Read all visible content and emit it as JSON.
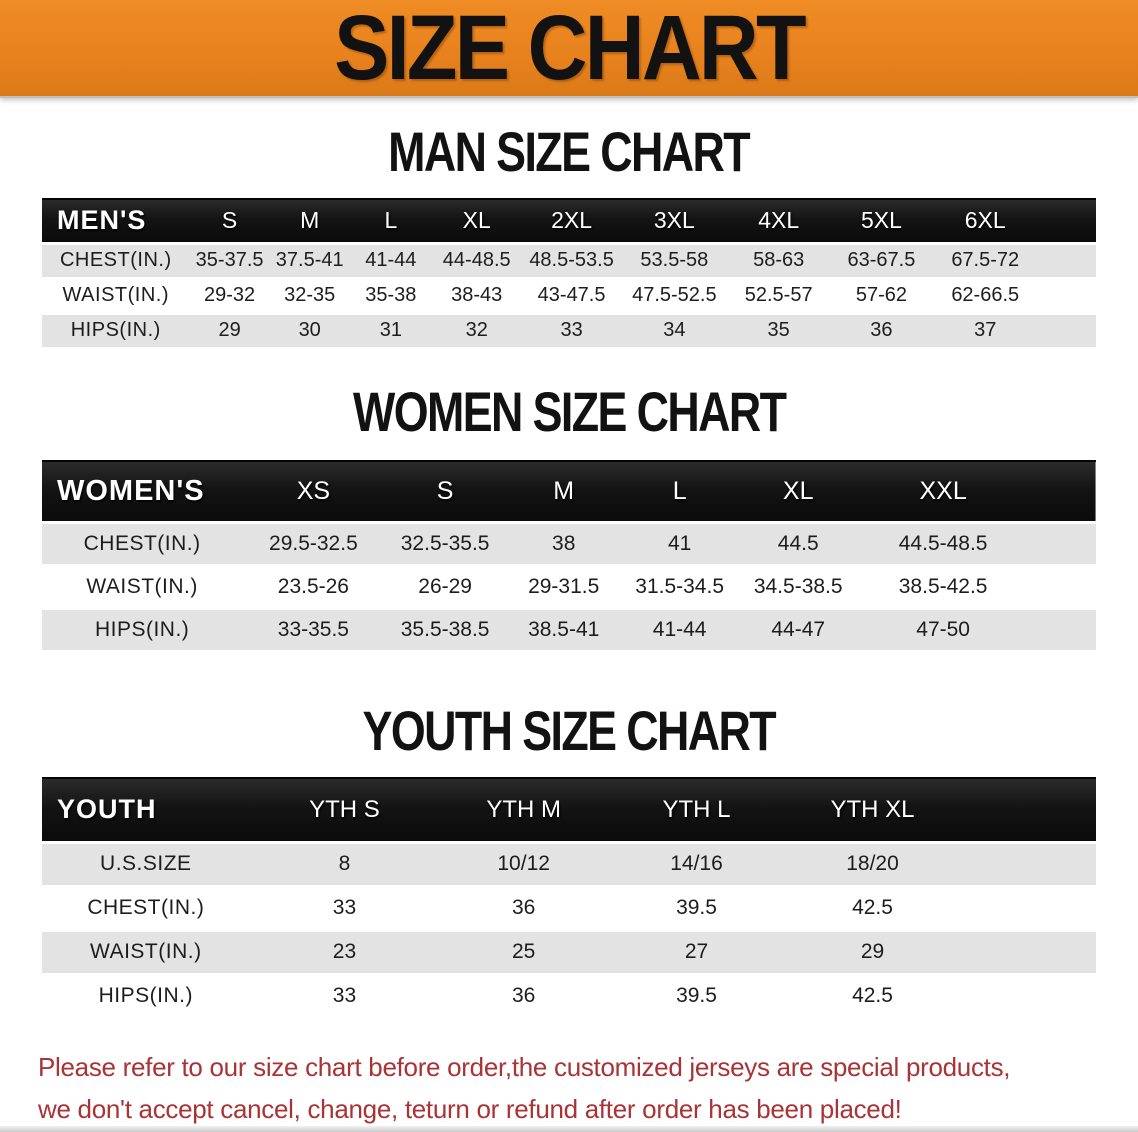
{
  "banner": {
    "title": "SIZE CHART",
    "bg_color": "#E8821E",
    "text_color": "#121212"
  },
  "colors": {
    "table_header_bar": "#141414",
    "table_header_text": "#FFFFFF",
    "row_alt_gray": "#E3E3E3",
    "row_white": "#FFFFFF",
    "body_text": "#1D1D1D",
    "disclaimer_red": "#A93335"
  },
  "sections": [
    {
      "heading": "MAN SIZE CHART",
      "corner_label": "MEN'S",
      "columns": [
        "S",
        "M",
        "L",
        "XL",
        "2XL",
        "3XL",
        "4XL",
        "5XL",
        "6XL"
      ],
      "rows": [
        {
          "label": "CHEST(IN.)",
          "values": [
            "35-37.5",
            "37.5-41",
            "41-44",
            "44-48.5",
            "48.5-53.5",
            "53.5-58",
            "58-63",
            "63-67.5",
            "67.5-72"
          ]
        },
        {
          "label": "WAIST(IN.)",
          "values": [
            "29-32",
            "32-35",
            "35-38",
            "38-43",
            "43-47.5",
            "47.5-52.5",
            "52.5-57",
            "57-62",
            "62-66.5"
          ]
        },
        {
          "label": "HIPS(IN.)",
          "values": [
            "29",
            "30",
            "31",
            "32",
            "33",
            "34",
            "35",
            "36",
            "37"
          ]
        }
      ]
    },
    {
      "heading": "WOMEN SIZE CHART",
      "corner_label": "WOMEN'S",
      "columns": [
        "XS",
        "S",
        "M",
        "L",
        "XL",
        "XXL"
      ],
      "rows": [
        {
          "label": "CHEST(IN.)",
          "values": [
            "29.5-32.5",
            "32.5-35.5",
            "38",
            "41",
            "44.5",
            "44.5-48.5"
          ]
        },
        {
          "label": "WAIST(IN.)",
          "values": [
            "23.5-26",
            "26-29",
            "29-31.5",
            "31.5-34.5",
            "34.5-38.5",
            "38.5-42.5"
          ]
        },
        {
          "label": "HIPS(IN.)",
          "values": [
            "33-35.5",
            "35.5-38.5",
            "38.5-41",
            "41-44",
            "44-47",
            "47-50"
          ]
        }
      ]
    },
    {
      "heading": "YOUTH SIZE CHART",
      "corner_label": "YOUTH",
      "columns": [
        "YTH S",
        "YTH M",
        "YTH L",
        "YTH XL"
      ],
      "rows": [
        {
          "label": "U.S.SIZE",
          "values": [
            "8",
            "10/12",
            "14/16",
            "18/20"
          ]
        },
        {
          "label": "CHEST(IN.)",
          "values": [
            "33",
            "36",
            "39.5",
            "42.5"
          ]
        },
        {
          "label": "WAIST(IN.)",
          "values": [
            "23",
            "25",
            "27",
            "29"
          ]
        },
        {
          "label": "HIPS(IN.)",
          "values": [
            "33",
            "36",
            "39.5",
            "42.5"
          ]
        }
      ]
    }
  ],
  "disclaimer": {
    "line1": "Please refer to our size chart before order,the customized jerseys are special products,",
    "line2": "we don't accept cancel, change, teturn or refund after order has been placed!"
  }
}
